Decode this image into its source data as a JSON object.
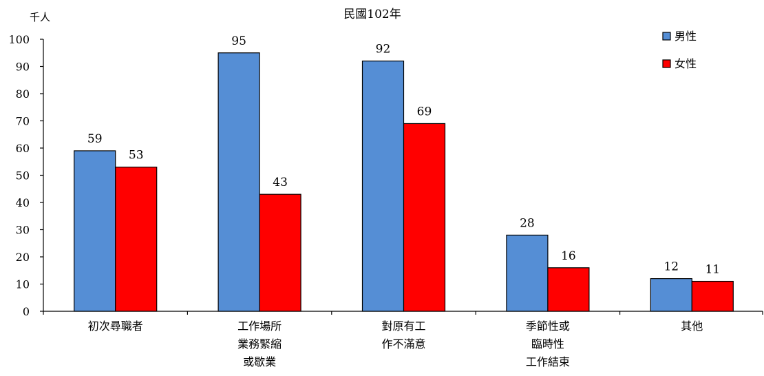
{
  "chart_data": {
    "type": "bar",
    "title": "民國102年",
    "ylabel": "千人",
    "xlabel": "",
    "ylim": [
      0,
      100
    ],
    "yticks": [
      0,
      10,
      20,
      30,
      40,
      50,
      60,
      70,
      80,
      90,
      100
    ],
    "categories": [
      [
        "初次尋職者"
      ],
      [
        "工作場所",
        "業務緊縮",
        "或歇業"
      ],
      [
        "對原有工",
        "作不滿意"
      ],
      [
        "季節性或",
        "臨時性",
        "工作結束"
      ],
      [
        "其他"
      ]
    ],
    "series": [
      {
        "name": "男性",
        "color": "#558ed5",
        "values": [
          59,
          95,
          92,
          28,
          12
        ]
      },
      {
        "name": "女性",
        "color": "#ff0000",
        "values": [
          53,
          43,
          69,
          16,
          11
        ]
      }
    ],
    "legend": "top-right",
    "grid": false
  }
}
